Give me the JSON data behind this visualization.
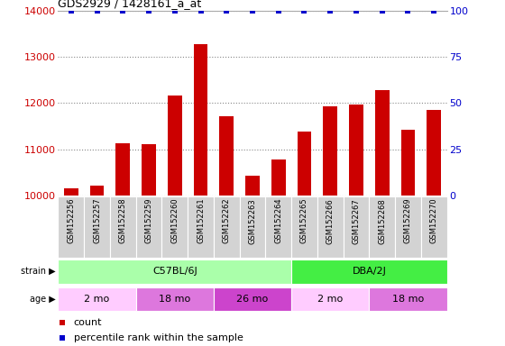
{
  "title": "GDS2929 / 1428161_a_at",
  "samples": [
    "GSM152256",
    "GSM152257",
    "GSM152258",
    "GSM152259",
    "GSM152260",
    "GSM152261",
    "GSM152262",
    "GSM152263",
    "GSM152264",
    "GSM152265",
    "GSM152266",
    "GSM152267",
    "GSM152268",
    "GSM152269",
    "GSM152270"
  ],
  "counts": [
    10150,
    10220,
    11130,
    11100,
    12170,
    13270,
    11720,
    10430,
    10780,
    11390,
    11930,
    11960,
    12280,
    11430,
    11840
  ],
  "bar_color": "#cc0000",
  "dot_color": "#0000cc",
  "ylim_left": [
    10000,
    14000
  ],
  "ylim_right": [
    0,
    100
  ],
  "yticks_left": [
    10000,
    11000,
    12000,
    13000,
    14000
  ],
  "yticks_right": [
    0,
    25,
    50,
    75,
    100
  ],
  "grid_color": "#888888",
  "strain_groups": [
    {
      "label": "C57BL/6J",
      "start": 0,
      "end": 9,
      "color": "#aaffaa"
    },
    {
      "label": "DBA/2J",
      "start": 9,
      "end": 15,
      "color": "#44ee44"
    }
  ],
  "age_groups": [
    {
      "label": "2 mo",
      "start": 0,
      "end": 3,
      "color": "#ffccff"
    },
    {
      "label": "18 mo",
      "start": 3,
      "end": 6,
      "color": "#dd77dd"
    },
    {
      "label": "26 mo",
      "start": 6,
      "end": 9,
      "color": "#cc44cc"
    },
    {
      "label": "2 mo",
      "start": 9,
      "end": 12,
      "color": "#ffccff"
    },
    {
      "label": "18 mo",
      "start": 12,
      "end": 15,
      "color": "#dd77dd"
    }
  ],
  "left_yaxis_color": "#cc0000",
  "right_yaxis_color": "#0000cc",
  "legend_count_color": "#cc0000",
  "legend_pct_color": "#0000cc"
}
